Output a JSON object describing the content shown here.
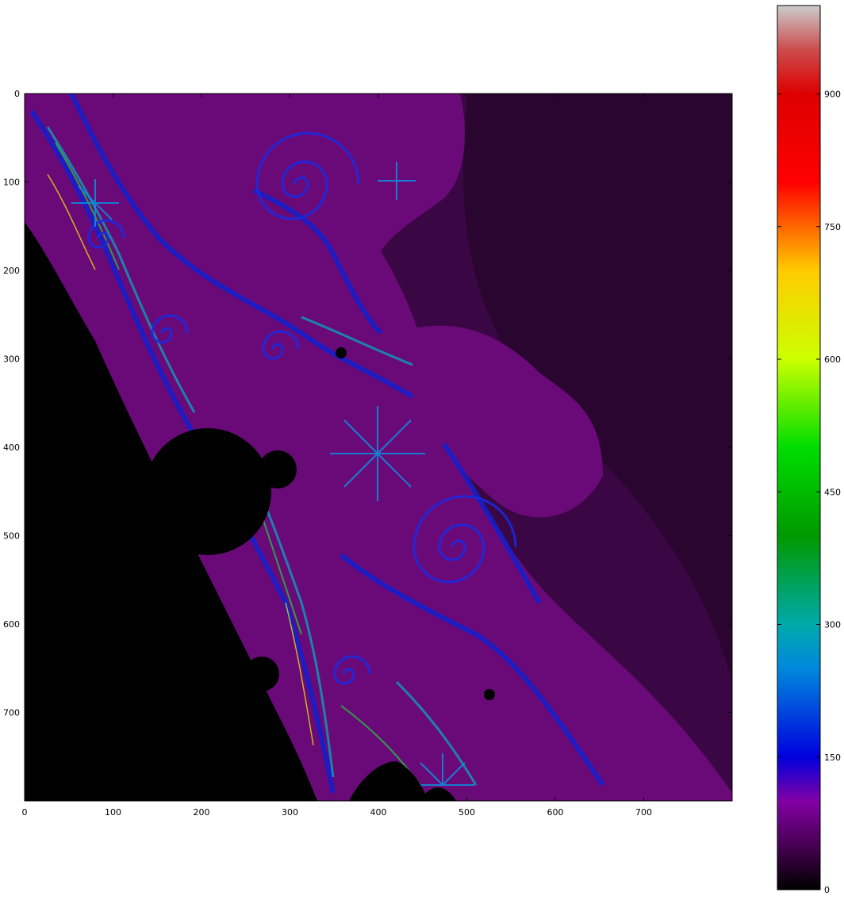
{
  "chart_data": [
    {
      "type": "heatmap",
      "title": "",
      "xlabel": "",
      "ylabel": "",
      "xlim": [
        0,
        800
      ],
      "ylim": [
        800,
        0
      ],
      "x_ticks": [
        0,
        100,
        200,
        300,
        400,
        500,
        600,
        700
      ],
      "y_ticks": [
        0,
        100,
        200,
        300,
        400,
        500,
        600,
        700
      ],
      "image_shape": [
        800,
        800
      ],
      "grid": false,
      "content": "escape-time fractal (Mandelbrot set region, spiral detail)"
    },
    {
      "type": "colorbar",
      "colormap": "nipy_spectral",
      "vmin": 0,
      "vmax": 1000,
      "ticks": [
        0,
        150,
        300,
        450,
        600,
        750,
        900
      ],
      "orientation": "vertical",
      "placement": "right"
    }
  ],
  "colors": {
    "set_interior": "#000000",
    "background_dark": "#2a0530",
    "purple": "#6a0a78",
    "blue": "#0a1ad6",
    "cyan": "#0aa0b8",
    "green": "#0ab030",
    "yellow": "#e8e000",
    "red": "#e00000"
  }
}
